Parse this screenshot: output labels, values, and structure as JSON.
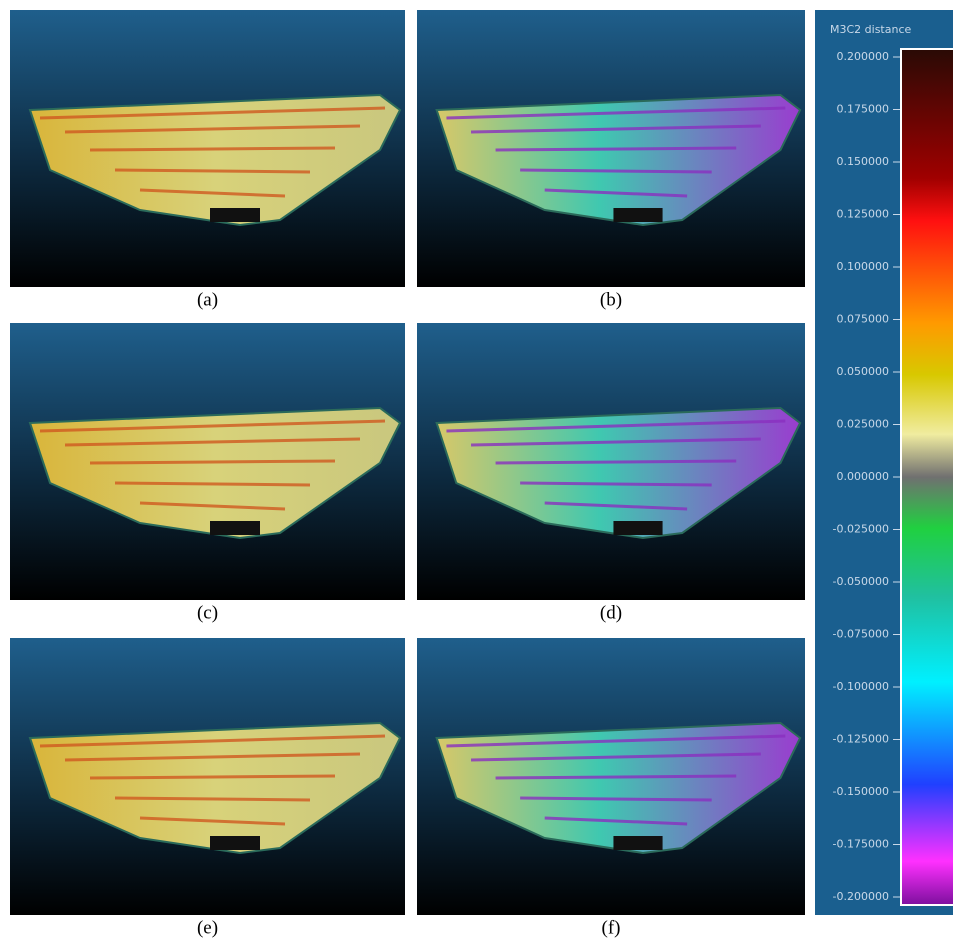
{
  "panels": [
    {
      "label": "(a)"
    },
    {
      "label": "(b)"
    },
    {
      "label": "(c)"
    },
    {
      "label": "(d)"
    },
    {
      "label": "(e)"
    },
    {
      "label": "(f)"
    }
  ],
  "colorbar": {
    "title": "M3C2 distance",
    "range": [
      -0.2,
      0.2
    ],
    "ticks": [
      {
        "value": 0.2,
        "label": "0.200000"
      },
      {
        "value": 0.175,
        "label": "0.175000"
      },
      {
        "value": 0.15,
        "label": "0.150000"
      },
      {
        "value": 0.125,
        "label": "0.125000"
      },
      {
        "value": 0.1,
        "label": "0.100000"
      },
      {
        "value": 0.075,
        "label": "0.075000"
      },
      {
        "value": 0.05,
        "label": "0.050000"
      },
      {
        "value": 0.025,
        "label": "0.025000"
      },
      {
        "value": 0,
        "label": "0.000000"
      },
      {
        "value": -0.025,
        "label": "-0.025000"
      },
      {
        "value": -0.05,
        "label": "-0.050000"
      },
      {
        "value": -0.075,
        "label": "-0.075000"
      },
      {
        "value": -0.1,
        "label": "-0.100000"
      },
      {
        "value": -0.125,
        "label": "-0.125000"
      },
      {
        "value": -0.15,
        "label": "-0.150000"
      },
      {
        "value": -0.175,
        "label": "-0.175000"
      },
      {
        "value": -0.2,
        "label": "-0.200000"
      }
    ]
  }
}
